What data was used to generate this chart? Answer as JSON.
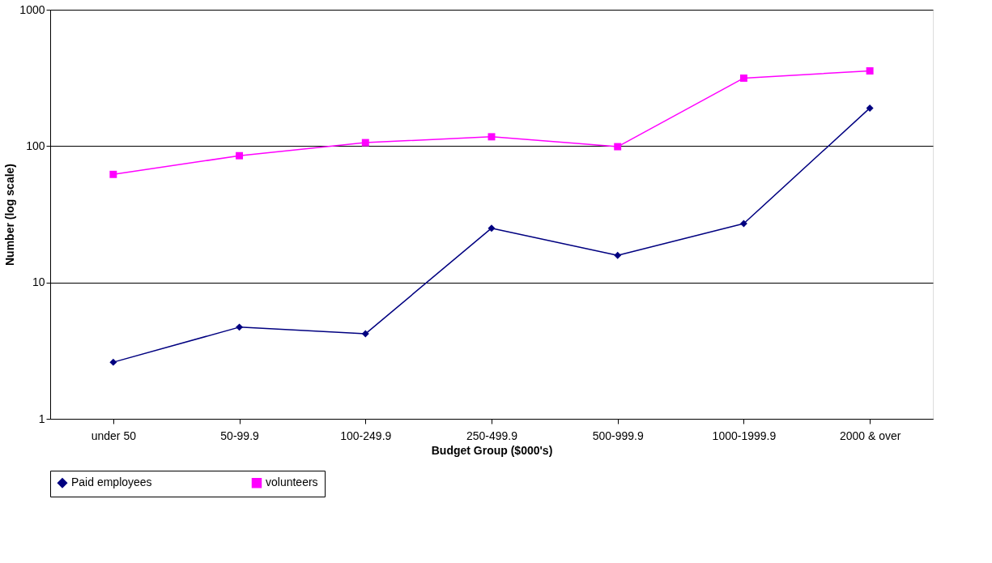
{
  "chart_data": {
    "type": "line",
    "xlabel": "Budget Group ($000's)",
    "ylabel": "Number (log scale)",
    "categories": [
      "under 50",
      "50-99.9",
      "100-249.9",
      "250-499.9",
      "500-999.9",
      "1000-1999.9",
      "2000 & over"
    ],
    "series": [
      {
        "name": "Paid employees",
        "color": "#000080",
        "marker": "diamond",
        "values": [
          2.6,
          4.7,
          4.2,
          25,
          15.8,
          27,
          190
        ]
      },
      {
        "name": "volunteers",
        "color": "#ff00ff",
        "marker": "square",
        "values": [
          62,
          85,
          106,
          117,
          99,
          315,
          356
        ]
      }
    ],
    "log": "y",
    "ylim": [
      1,
      1000
    ],
    "yticks": [
      1,
      10,
      100,
      1000
    ],
    "grid": "y",
    "legend": "bottom",
    "line_style": "solid"
  }
}
